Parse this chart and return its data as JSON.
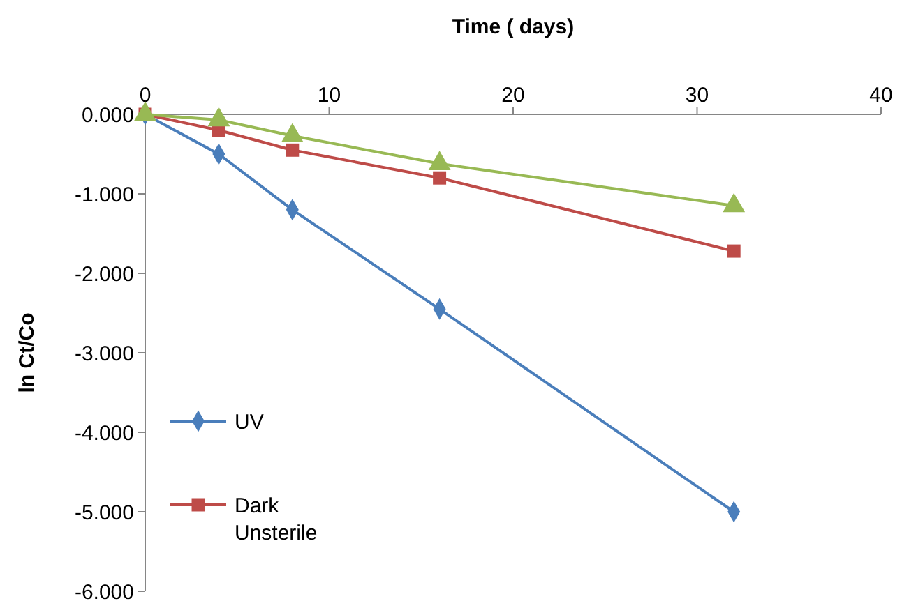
{
  "chart_data": {
    "type": "line",
    "xlabel": "Time ( days)",
    "ylabel": "ln Ct/Co",
    "x": [
      0,
      4,
      8,
      16,
      32
    ],
    "xlim": [
      0,
      40
    ],
    "xticks": [
      0,
      10,
      20,
      30,
      40
    ],
    "ylim": [
      -6,
      0
    ],
    "yticks": [
      {
        "value": 0,
        "label": "0.000"
      },
      {
        "value": -1,
        "label": "-1.000"
      },
      {
        "value": -2,
        "label": "-2.000"
      },
      {
        "value": -3,
        "label": "-3.000"
      },
      {
        "value": -4,
        "label": "-4.000"
      },
      {
        "value": -5,
        "label": "-5.000"
      },
      {
        "value": -6,
        "label": "-6.000"
      }
    ],
    "series": [
      {
        "name": "UV",
        "color": "#4a7ebb",
        "marker": "diamond",
        "values": [
          0,
          -0.5,
          -1.2,
          -2.45,
          -5.0
        ]
      },
      {
        "name": "Dark Unsterile",
        "color": "#be4b48",
        "marker": "square",
        "values": [
          0,
          -0.2,
          -0.45,
          -0.8,
          -1.72
        ]
      },
      {
        "color": "#98b954",
        "marker": "triangle",
        "values": [
          0,
          -0.07,
          -0.27,
          -0.62,
          -1.15
        ]
      }
    ],
    "legend": "bottom left",
    "grid": false,
    "line_style": "solid"
  }
}
